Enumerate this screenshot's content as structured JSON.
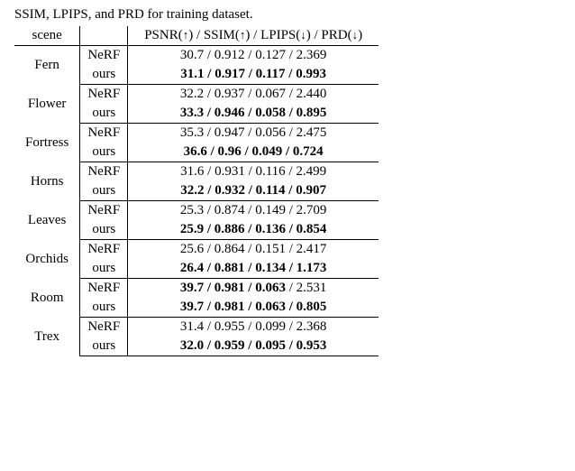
{
  "caption": "SSIM, LPIPS, and PRD for training dataset.",
  "header": {
    "scene": "scene",
    "metrics_label_pre": "PSNR(",
    "metrics_label_psnr_arrow": "↑",
    "metrics_label_mid1": ") / SSIM(",
    "metrics_label_ssim_arrow": "↑",
    "metrics_label_mid2": ") / LPIPS(",
    "metrics_label_lpips_arrow": "↓",
    "metrics_label_mid3": ") / PRD(",
    "metrics_label_prd_arrow": "↓",
    "metrics_label_post": ")"
  },
  "methods": {
    "nerf": "NeRF",
    "ours": "ours"
  },
  "rows": [
    {
      "scene": "Fern",
      "nerf": {
        "text": "30.7 / 0.912 / 0.127 / 2.369",
        "bold_span": ""
      },
      "ours": {
        "text": "",
        "bold_span": "31.1 / 0.917 / 0.117 / 0.993"
      }
    },
    {
      "scene": "Flower",
      "nerf": {
        "text": "32.2 / 0.937 / 0.067 / 2.440",
        "bold_span": ""
      },
      "ours": {
        "text": "",
        "bold_span": "33.3 / 0.946 / 0.058 / 0.895"
      }
    },
    {
      "scene": "Fortress",
      "nerf": {
        "text": "35.3 / 0.947 / 0.056 / 2.475",
        "bold_span": ""
      },
      "ours": {
        "text": "",
        "bold_span": "36.6 / 0.96 / 0.049 / 0.724"
      }
    },
    {
      "scene": "Horns",
      "nerf": {
        "text": "31.6 / 0.931 / 0.116 / 2.499",
        "bold_span": ""
      },
      "ours": {
        "text": "",
        "bold_span": "32.2 / 0.932 / 0.114 / 0.907"
      }
    },
    {
      "scene": "Leaves",
      "nerf": {
        "text": "25.3 / 0.874 / 0.149 / 2.709",
        "bold_span": ""
      },
      "ours": {
        "text": "",
        "bold_span": "25.9 / 0.886 / 0.136 / 0.854"
      }
    },
    {
      "scene": "Orchids",
      "nerf": {
        "text": "25.6 / 0.864 / 0.151 / 2.417",
        "bold_span": ""
      },
      "ours": {
        "text": "",
        "bold_span": "26.4 / 0.881 / 0.134 / 1.173"
      }
    },
    {
      "scene": "Room",
      "nerf": {
        "text": " / 2.531",
        "bold_span": "39.7 / 0.981 / 0.063"
      },
      "ours": {
        "text": "",
        "bold_span": "39.7 / 0.981 / 0.063 / 0.805"
      }
    },
    {
      "scene": "Trex",
      "nerf": {
        "text": "31.4 / 0.955 / 0.099 / 2.368",
        "bold_span": ""
      },
      "ours": {
        "text": "",
        "bold_span": "32.0 / 0.959 / 0.095 / 0.953"
      }
    }
  ]
}
